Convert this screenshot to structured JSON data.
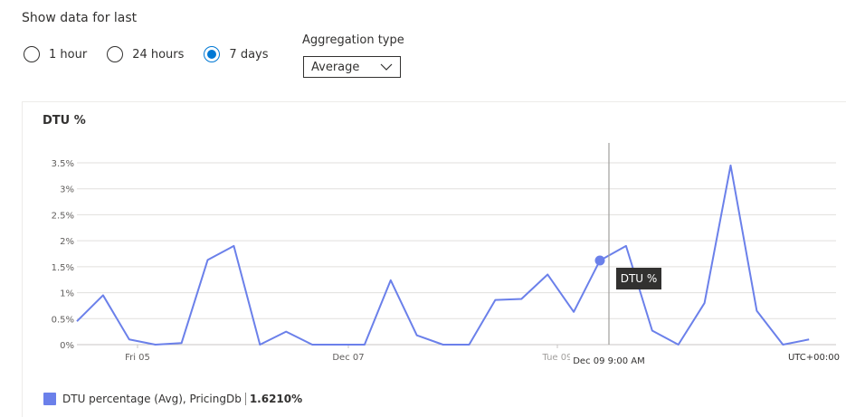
{
  "filters": {
    "show_label": "Show data for last",
    "options": [
      {
        "label": "1 hour",
        "selected": false
      },
      {
        "label": "24 hours",
        "selected": false
      },
      {
        "label": "7 days",
        "selected": true
      }
    ],
    "aggregation_label": "Aggregation type",
    "aggregation_value": "Average"
  },
  "colors": {
    "series": "#6b80ea",
    "accent": "#0078d4",
    "tooltip_bg": "#323130"
  },
  "cursor": {
    "label": "Dec 09 9:00 AM",
    "hover_value": 1.62,
    "tooltip": "DTU %"
  },
  "chart_data": {
    "type": "line",
    "title": "DTU %",
    "ylim": [
      0,
      3.5
    ],
    "y_ticks": [
      "0%",
      "0.5%",
      "1%",
      "1.5%",
      "2%",
      "2.5%",
      "3%",
      "3.5%"
    ],
    "x_ticks": [
      "Fri 05",
      "Dec 07",
      "Tue 09"
    ],
    "timezone": "UTC+00:00",
    "grid": true,
    "series": [
      {
        "name": "DTU percentage (Avg), PricingDb",
        "values": [
          0.45,
          0.95,
          0.1,
          0.0,
          0.03,
          1.63,
          1.9,
          0.0,
          0.25,
          0.0,
          0.0,
          0.0,
          1.24,
          0.18,
          0.0,
          0.0,
          0.86,
          0.88,
          1.35,
          0.63,
          1.62,
          1.9,
          0.27,
          0.0,
          0.8,
          3.45,
          0.65,
          0.0,
          0.1
        ]
      }
    ],
    "legend": {
      "label": "DTU percentage (Avg), PricingDb",
      "value": "1.6210%"
    }
  }
}
